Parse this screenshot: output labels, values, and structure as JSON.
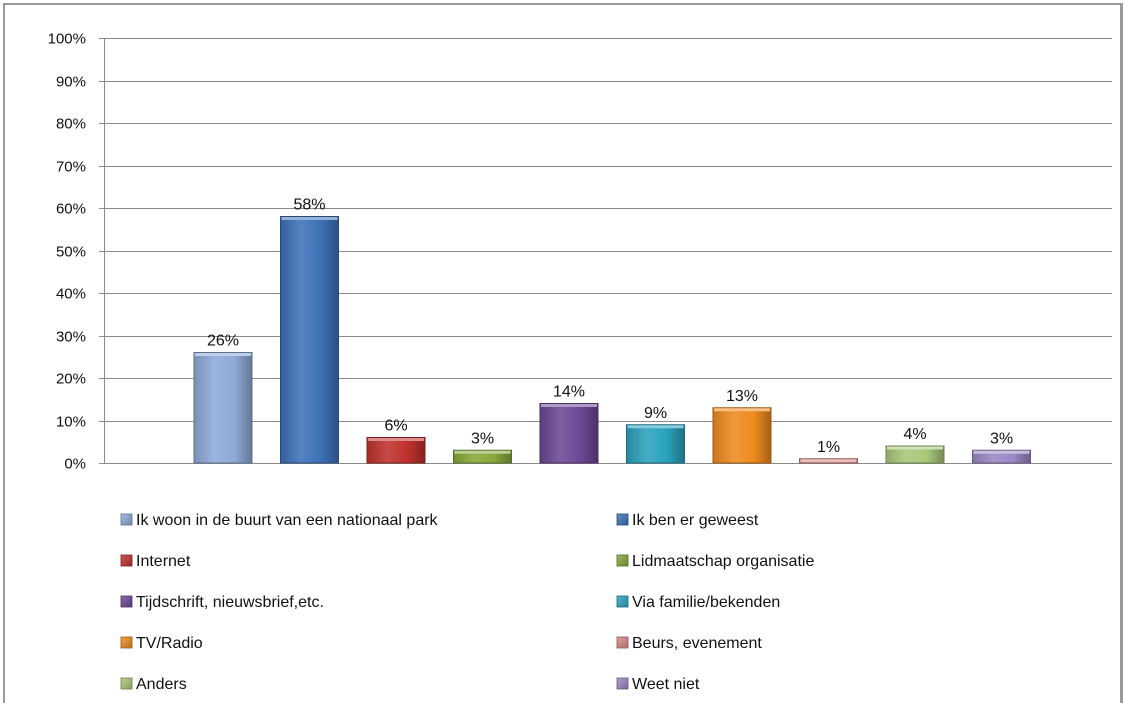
{
  "chart_data": {
    "type": "bar",
    "categories": [
      "Ik woon in de buurt van een nationaal park",
      "Ik ben er geweest",
      "Internet",
      "Lidmaatschap organisatie",
      "Tijdschrift, nieuwsbrief,etc.",
      "Via familie/bekenden",
      "TV/Radio",
      "Beurs, evenement",
      "Anders",
      "Weet niet"
    ],
    "values": [
      26,
      58,
      6,
      3,
      14,
      9,
      13,
      1,
      4,
      3
    ],
    "data_labels": [
      "26%",
      "58%",
      "6%",
      "3%",
      "14%",
      "9%",
      "13%",
      "1%",
      "4%",
      "3%"
    ],
    "colors": [
      "#8faad8",
      "#3d72b8",
      "#c0312d",
      "#86a83a",
      "#6b4895",
      "#2aa2bd",
      "#ee8b1f",
      "#d98787",
      "#a8c87a",
      "#9b87c4"
    ],
    "y_ticks": [
      "0%",
      "10%",
      "20%",
      "30%",
      "40%",
      "50%",
      "60%",
      "70%",
      "80%",
      "90%",
      "100%"
    ],
    "ylim": [
      0,
      100
    ],
    "grid": true,
    "legend_position": "bottom",
    "title": "",
    "xlabel": "",
    "ylabel": ""
  }
}
